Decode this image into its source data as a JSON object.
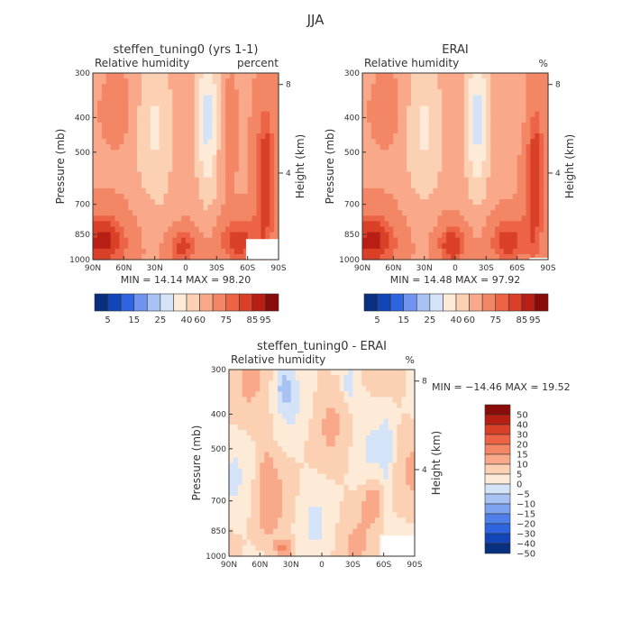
{
  "title": "JJA",
  "palette": {
    "abs": [
      "#08307e",
      "#1245b8",
      "#2e64e0",
      "#6f93ee",
      "#a8c2f4",
      "#d4e3f8",
      "#fdebd8",
      "#fcd0b3",
      "#f9a98a",
      "#f38765",
      "#ec6346",
      "#d94027",
      "#b81f14",
      "#8a0c0a"
    ],
    "diff": [
      "#08307e",
      "#1245b8",
      "#2e64e0",
      "#4f7fe8",
      "#7ea3f0",
      "#a8c2f4",
      "#d4e3f8",
      "#fdebd8",
      "#fcd0b3",
      "#f9a98a",
      "#f38765",
      "#ec6346",
      "#d94027",
      "#b81f14",
      "#8a0c0a"
    ]
  },
  "chart_data": [
    {
      "type": "heatmap",
      "title": "steffen_tuning0 (yrs 1-1)",
      "subtitle_left": "Relative humidity",
      "subtitle_right": "percent",
      "xlabel": "",
      "ylabel": "Pressure (mb)",
      "ylabel_right": "Height (km)",
      "x_ticks": [
        "90N",
        "60N",
        "30N",
        "0",
        "30S",
        "60S",
        "90S"
      ],
      "y_ticks": [
        "300",
        "400",
        "500",
        "700",
        "850",
        "1000"
      ],
      "height_ticks": [
        "8",
        "4"
      ],
      "stats": "MIN =   14.14   MAX =   98.20",
      "min": 14.14,
      "max": 98.2,
      "colorbar_labels": [
        "5",
        "15",
        "25",
        "40",
        "60",
        "75",
        "85",
        "95"
      ]
    },
    {
      "type": "heatmap",
      "title": "ERAI",
      "subtitle_left": "Relative humidity",
      "subtitle_right": "%",
      "xlabel": "",
      "ylabel": "Pressure (mb)",
      "ylabel_right": "Height (km)",
      "x_ticks": [
        "90N",
        "60N",
        "30N",
        "0",
        "30S",
        "60S",
        "90S"
      ],
      "y_ticks": [
        "300",
        "400",
        "500",
        "700",
        "850",
        "1000"
      ],
      "height_ticks": [
        "8",
        "4"
      ],
      "stats": "MIN =   14.48   MAX =   97.92",
      "min": 14.48,
      "max": 97.92,
      "colorbar_labels": [
        "5",
        "15",
        "25",
        "40",
        "60",
        "75",
        "85",
        "95"
      ]
    },
    {
      "type": "heatmap",
      "title": "steffen_tuning0 - ERAI",
      "subtitle_left": "Relative humidity",
      "subtitle_right": "%",
      "xlabel": "",
      "ylabel": "Pressure (mb)",
      "ylabel_right": "Height (km)",
      "x_ticks": [
        "90N",
        "60N",
        "30N",
        "0",
        "30S",
        "60S",
        "90S"
      ],
      "y_ticks": [
        "300",
        "400",
        "500",
        "700",
        "850",
        "1000"
      ],
      "height_ticks": [
        "8",
        "4"
      ],
      "stats": "MIN = −14.46   MAX =   19.52",
      "min": -14.46,
      "max": 19.52,
      "colorbar_labels": [
        "50",
        "40",
        "30",
        "20",
        "15",
        "10",
        "5",
        "0",
        "−5",
        "−10",
        "−15",
        "−20",
        "−30",
        "−40",
        "−50"
      ]
    }
  ]
}
